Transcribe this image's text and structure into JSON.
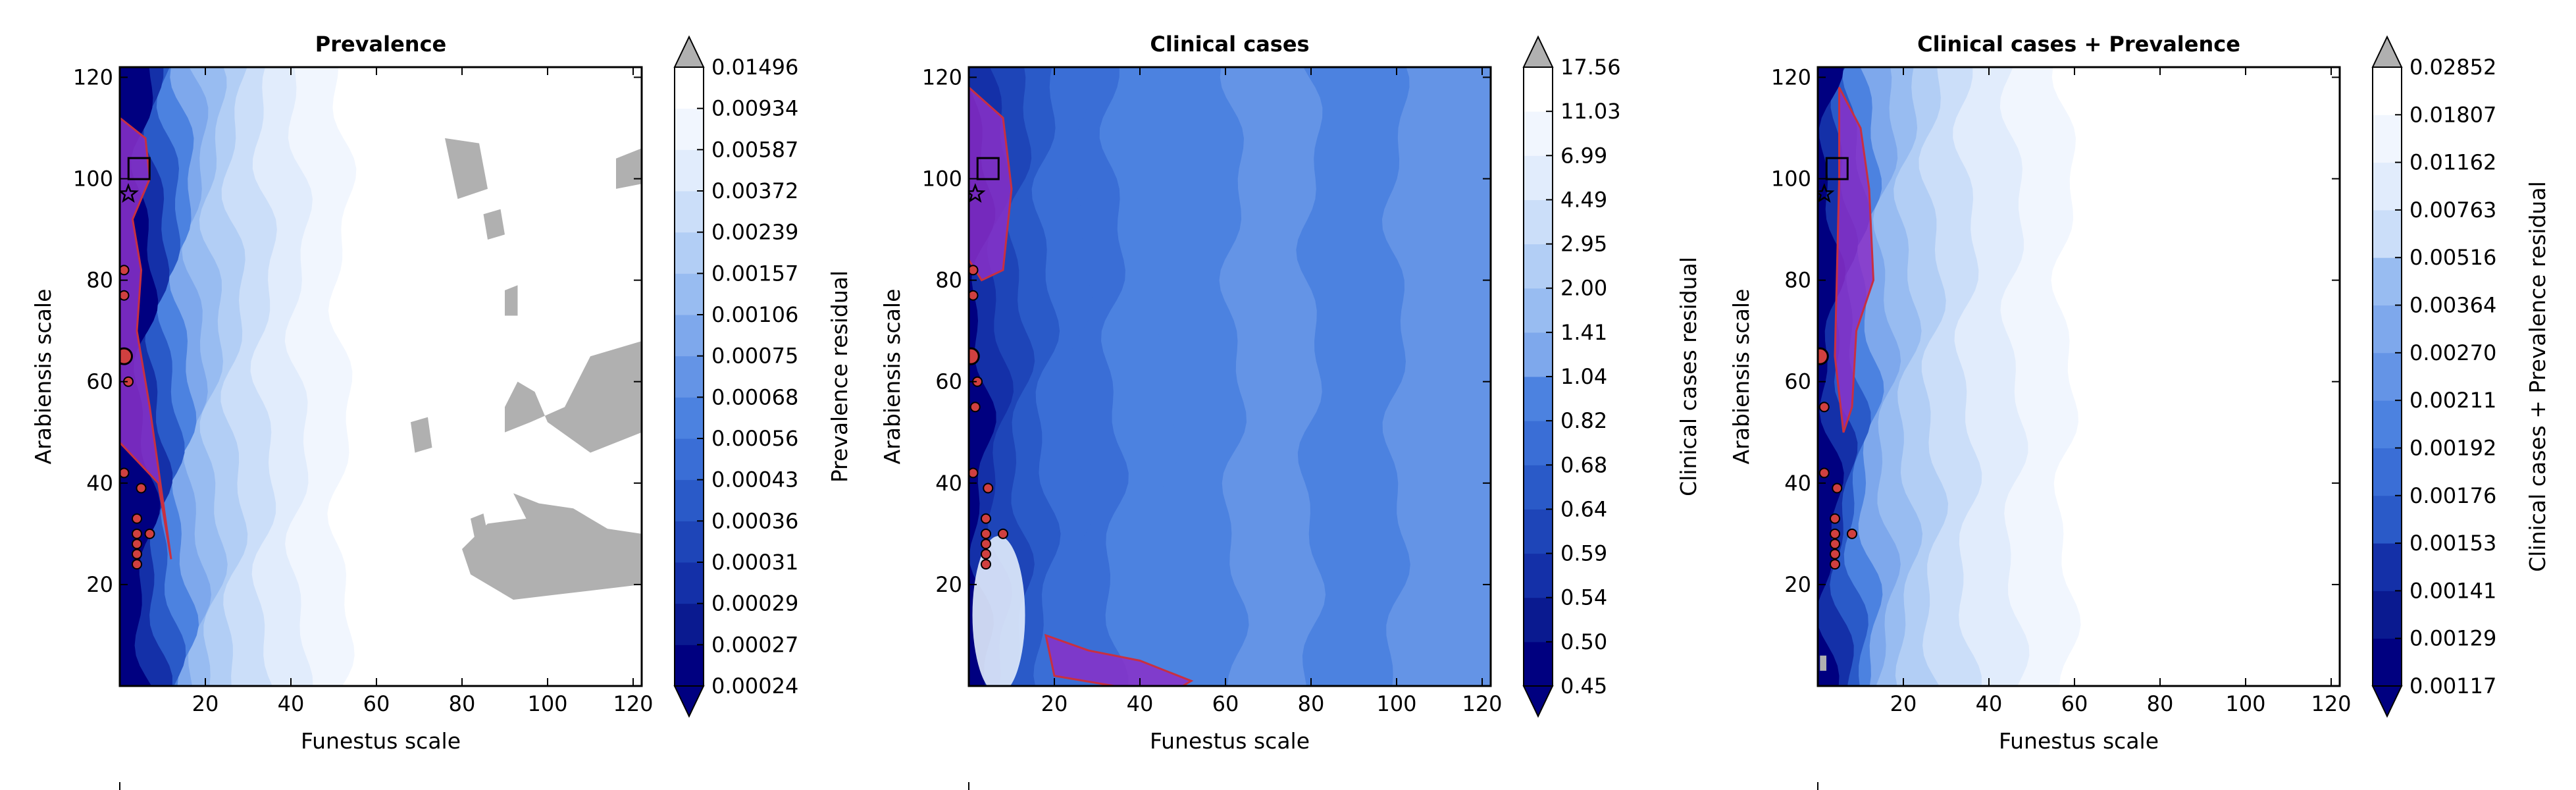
{
  "palette": {
    "levels": [
      "#000080",
      "#0a1a90",
      "#1430a8",
      "#1e45b8",
      "#2a5ac8",
      "#3a6ed6",
      "#4c82e0",
      "#6494e6",
      "#7ea8ec",
      "#98bcf1",
      "#b2cef5",
      "#cbdef9",
      "#e1ecfc",
      "#f1f6fe",
      "#ffffff"
    ],
    "over": "#b0b0b0",
    "purple": "#8a30c8",
    "contour": "#c83040",
    "marker_fill": "#d04040"
  },
  "chart_data": [
    {
      "type": "heatmap",
      "title": "Prevalence",
      "xlabel": "Funestus scale",
      "ylabel": "Arabiensis scale",
      "xlim": [
        0,
        122
      ],
      "ylim": [
        0,
        122
      ],
      "xticks": [
        "20",
        "40",
        "60",
        "80",
        "100",
        "120"
      ],
      "yticks": [
        "20",
        "40",
        "60",
        "80",
        "100",
        "120"
      ],
      "colorbar_label": "Prevalence residual",
      "colorbar_ticks": [
        "0.00024",
        "0.00027",
        "0.00029",
        "0.00031",
        "0.00036",
        "0.00043",
        "0.00056",
        "0.00068",
        "0.00075",
        "0.00106",
        "0.00157",
        "0.00239",
        "0.00372",
        "0.00587",
        "0.00934",
        "0.01496"
      ],
      "region": {
        "x": [
          0,
          6,
          7,
          3,
          5,
          4,
          7,
          12,
          9,
          0
        ],
        "y": [
          112,
          108,
          100,
          92,
          82,
          70,
          55,
          25,
          40,
          48
        ]
      },
      "square": [
        4.5,
        102
      ],
      "star": [
        2,
        97
      ],
      "circle_big": [
        1,
        65
      ],
      "points": [
        [
          1,
          82
        ],
        [
          1,
          77
        ],
        [
          2,
          60
        ],
        [
          1,
          42
        ],
        [
          5,
          39
        ],
        [
          4,
          33
        ],
        [
          4,
          30
        ],
        [
          7,
          30
        ],
        [
          4,
          28
        ],
        [
          4,
          26
        ],
        [
          4,
          24
        ]
      ],
      "grey_blobs": [
        {
          "x": [
            76,
            84,
            86,
            79
          ],
          "y": [
            108,
            107,
            98,
            96
          ]
        },
        {
          "x": [
            116,
            122,
            122,
            116
          ],
          "y": [
            104,
            106,
            99,
            98
          ]
        },
        {
          "x": [
            85,
            89,
            90,
            86
          ],
          "y": [
            93,
            94,
            89,
            88
          ]
        },
        {
          "x": [
            90,
            93,
            93,
            90
          ],
          "y": [
            78,
            79,
            73,
            73
          ]
        },
        {
          "x": [
            68,
            72,
            73,
            69
          ],
          "y": [
            52,
            53,
            47,
            46
          ]
        },
        {
          "x": [
            82,
            85,
            86,
            83
          ],
          "y": [
            33,
            34,
            30,
            29
          ]
        },
        {
          "x": [
            90,
            96,
            104,
            110,
            122,
            122,
            112,
            102,
            92,
            82,
            80,
            86,
            95,
            92,
            98,
            106,
            114,
            122,
            122,
            110,
            100,
            97,
            93,
            90
          ],
          "y": [
            50,
            52,
            55,
            65,
            68,
            20,
            19,
            18,
            17,
            22,
            27,
            32,
            33,
            38,
            36,
            35,
            31,
            30,
            50,
            46,
            52,
            58,
            60,
            55
          ]
        }
      ]
    },
    {
      "type": "heatmap",
      "title": "Clinical cases",
      "xlabel": "Funestus scale",
      "ylabel": "Arabiensis scale",
      "xlim": [
        0,
        122
      ],
      "ylim": [
        0,
        122
      ],
      "xticks": [
        "20",
        "40",
        "60",
        "80",
        "100",
        "120"
      ],
      "yticks": [
        "20",
        "40",
        "60",
        "80",
        "100",
        "120"
      ],
      "colorbar_label": "Clinical cases residual",
      "colorbar_ticks": [
        "0.45",
        "0.50",
        "0.54",
        "0.59",
        "0.64",
        "0.68",
        "0.82",
        "1.04",
        "1.41",
        "2.00",
        "2.95",
        "4.49",
        "6.99",
        "11.03",
        "17.56"
      ],
      "region": {
        "x": [
          0,
          8,
          10,
          8,
          3,
          0
        ],
        "y": [
          118,
          112,
          98,
          82,
          80,
          84
        ]
      },
      "region2": {
        "x": [
          18,
          28,
          40,
          52,
          50,
          34,
          20
        ],
        "y": [
          10,
          7,
          5,
          1,
          0,
          0,
          2
        ]
      },
      "square": [
        4.5,
        102
      ],
      "star": [
        1.5,
        97
      ],
      "circle_big": [
        0.5,
        65
      ],
      "points": [
        [
          1,
          82
        ],
        [
          1,
          77
        ],
        [
          2,
          60
        ],
        [
          1.5,
          55
        ],
        [
          1,
          42
        ],
        [
          4.5,
          39
        ],
        [
          4,
          33
        ],
        [
          4,
          30
        ],
        [
          8,
          30
        ],
        [
          4,
          28
        ],
        [
          4,
          26
        ],
        [
          4,
          24
        ]
      ],
      "grey_blobs": []
    },
    {
      "type": "heatmap",
      "title": "Clinical cases + Prevalence",
      "xlabel": "Funestus scale",
      "ylabel": "Arabiensis scale",
      "xlim": [
        0,
        122
      ],
      "ylim": [
        0,
        122
      ],
      "xticks": [
        "20",
        "40",
        "60",
        "80",
        "100",
        "120"
      ],
      "yticks": [
        "20",
        "40",
        "60",
        "80",
        "100",
        "120"
      ],
      "colorbar_label": "Clinical cases + Prevalence residual",
      "colorbar_ticks": [
        "0.00117",
        "0.00129",
        "0.00141",
        "0.00153",
        "0.00176",
        "0.00192",
        "0.00211",
        "0.00270",
        "0.00364",
        "0.00516",
        "0.00763",
        "0.01162",
        "0.01807",
        "0.02852"
      ],
      "region": {
        "x": [
          5,
          10,
          12,
          13,
          9,
          8,
          6,
          4,
          5
        ],
        "y": [
          118,
          110,
          98,
          80,
          70,
          55,
          50,
          65,
          100
        ]
      },
      "square": [
        4.5,
        102
      ],
      "star": [
        1.5,
        97
      ],
      "circle_big": [
        0.5,
        65
      ],
      "points": [
        [
          1.5,
          55
        ],
        [
          1.5,
          42
        ],
        [
          4.5,
          39
        ],
        [
          4,
          33
        ],
        [
          4,
          30
        ],
        [
          8,
          30
        ],
        [
          4,
          28
        ],
        [
          4,
          26
        ],
        [
          4,
          24
        ]
      ],
      "grey_blobs": [
        {
          "x": [
            0.5,
            2,
            2,
            0.5
          ],
          "y": [
            6,
            6,
            3,
            3
          ]
        }
      ]
    }
  ]
}
